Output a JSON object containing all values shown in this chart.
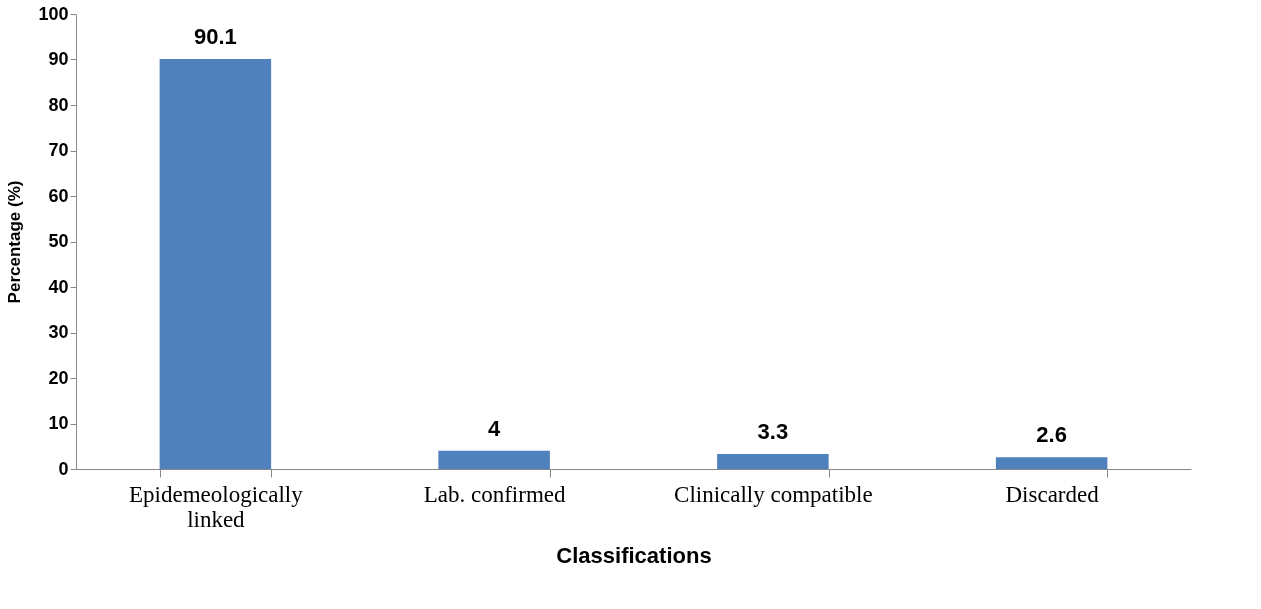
{
  "chart_data": {
    "type": "bar",
    "xlabel": "Classifications",
    "ylabel": "Percentage (%)",
    "categories": [
      "Epidemeologically linked",
      "Lab. confirmed",
      "Clinically compatible",
      "Discarded"
    ],
    "values": [
      90.1,
      4,
      3.3,
      2.6
    ],
    "color": "#4f81bd",
    "ylim": [
      0,
      100
    ],
    "yticks": [
      0,
      10,
      20,
      30,
      40,
      50,
      60,
      70,
      80,
      90,
      100
    ],
    "grid": false,
    "data_labels": true
  }
}
